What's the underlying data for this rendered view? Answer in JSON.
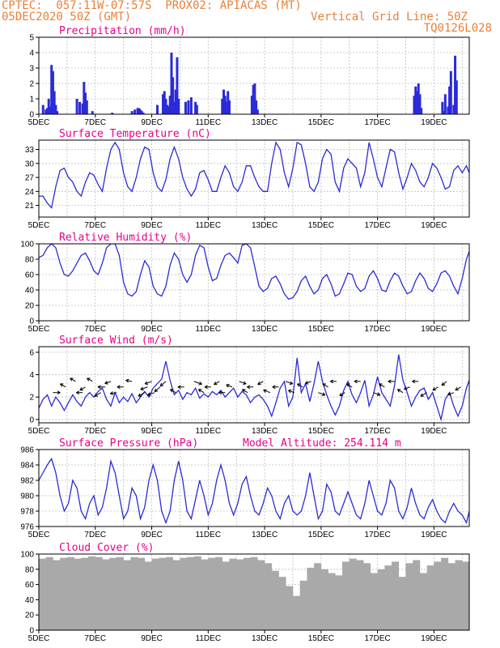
{
  "header": {
    "line1_left": "CPTEC:  057:11W-07:57S  PROX02: APIACAS (MT)",
    "line2_left": "05DEC2020 50Z (GMT)",
    "line2_right": "Vertical Grid Line: 50Z",
    "line3_right": "TQ0126L028"
  },
  "colors": {
    "title": "#e8008a",
    "header": "#e8803a",
    "series": "#2b2bd8",
    "cloud": "#a9a9a9",
    "grid": "#bdbdbd"
  },
  "x_axis": {
    "tick_labels": [
      "5DEC",
      "7DEC",
      "9DEC",
      "11DEC",
      "13DEC",
      "15DEC",
      "17DEC",
      "19DEC"
    ],
    "tick_days": [
      0,
      2,
      4,
      6,
      8,
      10,
      12,
      14
    ],
    "range_days": [
      0,
      15.25
    ],
    "minor_every_days": 1
  },
  "chart_data": [
    {
      "type": "bar",
      "title": "Precipitation (mm/h)",
      "ylim": [
        0,
        5
      ],
      "yticks": [
        0,
        1,
        2,
        3,
        4,
        5
      ],
      "x_days": [
        0.15,
        0.25,
        0.3,
        0.35,
        0.4,
        0.45,
        0.5,
        0.55,
        0.6,
        0.65,
        1.35,
        1.45,
        1.55,
        1.6,
        1.65,
        1.7,
        1.9,
        2.6,
        3.3,
        3.4,
        3.5,
        3.55,
        3.6,
        3.65,
        3.7,
        4.2,
        4.4,
        4.45,
        4.5,
        4.55,
        4.6,
        4.65,
        4.7,
        4.75,
        4.8,
        4.85,
        4.9,
        4.95,
        5.2,
        5.3,
        5.4,
        5.55,
        5.6,
        6.5,
        6.55,
        6.6,
        6.65,
        6.7,
        6.75,
        7.55,
        7.6,
        7.65,
        7.7,
        7.75,
        13.3,
        13.35,
        13.4,
        13.45,
        13.5,
        13.55,
        14.3,
        14.35,
        14.4,
        14.5,
        14.55,
        14.6,
        14.7,
        14.75,
        14.8
      ],
      "values": [
        0.6,
        0.3,
        0.4,
        1.0,
        0.5,
        3.2,
        2.8,
        1.5,
        0.6,
        0.2,
        1.0,
        0.8,
        0.7,
        2.1,
        1.4,
        0.9,
        0.2,
        0.1,
        0.2,
        0.3,
        0.4,
        0.4,
        0.3,
        0.2,
        0.1,
        0.6,
        1.3,
        1.5,
        1.0,
        0.6,
        0.5,
        1.2,
        4.0,
        2.4,
        0.8,
        1.6,
        3.7,
        1.0,
        0.8,
        0.9,
        1.1,
        0.8,
        0.6,
        1.0,
        1.6,
        1.2,
        0.8,
        1.5,
        0.9,
        1.2,
        1.9,
        2.0,
        0.9,
        0.3,
        1.2,
        1.8,
        1.5,
        2.0,
        1.3,
        0.4,
        0.8,
        0.2,
        1.3,
        0.5,
        1.8,
        2.8,
        0.6,
        3.8,
        2.2
      ]
    },
    {
      "type": "line",
      "title": "Surface Temperature (nC)",
      "ylim": [
        18.5,
        35
      ],
      "yticks": [
        21,
        24,
        27,
        30,
        33
      ],
      "x_days": [
        0,
        0.15,
        0.3,
        0.45,
        0.6,
        0.75,
        0.9,
        1.05,
        1.2,
        1.35,
        1.5,
        1.65,
        1.8,
        1.95,
        2.1,
        2.25,
        2.4,
        2.55,
        2.7,
        2.85,
        3.0,
        3.15,
        3.3,
        3.45,
        3.6,
        3.75,
        3.9,
        4.05,
        4.2,
        4.35,
        4.5,
        4.65,
        4.8,
        4.95,
        5.1,
        5.25,
        5.4,
        5.55,
        5.7,
        5.85,
        6.0,
        6.15,
        6.3,
        6.45,
        6.6,
        6.75,
        6.9,
        7.05,
        7.2,
        7.35,
        7.5,
        7.65,
        7.8,
        7.95,
        8.1,
        8.25,
        8.4,
        8.55,
        8.7,
        8.85,
        9.0,
        9.15,
        9.3,
        9.45,
        9.6,
        9.75,
        9.9,
        10.05,
        10.2,
        10.35,
        10.5,
        10.65,
        10.8,
        10.95,
        11.1,
        11.25,
        11.4,
        11.55,
        11.7,
        11.85,
        12.0,
        12.15,
        12.3,
        12.45,
        12.6,
        12.75,
        12.9,
        13.05,
        13.2,
        13.35,
        13.5,
        13.65,
        13.8,
        13.95,
        14.1,
        14.25,
        14.4,
        14.55,
        14.7,
        14.85,
        15.0,
        15.15,
        15.25
      ],
      "values": [
        23,
        23,
        21.5,
        20.5,
        25,
        28.5,
        29,
        27,
        26,
        24,
        23,
        26,
        28,
        27.5,
        25.5,
        24,
        29,
        33,
        34.5,
        33,
        28,
        25,
        24,
        27,
        31,
        33.5,
        33,
        28,
        25,
        24,
        26.5,
        31,
        33.5,
        31,
        27,
        24.5,
        23,
        24.5,
        28,
        28.5,
        26.5,
        24,
        24,
        27,
        29.5,
        28,
        25,
        24,
        26,
        29.5,
        29.5,
        27,
        25,
        24,
        24,
        30,
        34.5,
        33,
        28,
        25,
        29,
        34.5,
        34,
        30,
        25,
        24,
        26,
        31,
        33,
        32,
        26,
        24,
        29,
        31,
        30,
        29,
        25,
        28,
        34.5,
        31,
        27,
        25,
        29,
        33,
        32.5,
        28,
        24.5,
        27,
        30,
        28.5,
        26,
        25,
        27,
        30,
        29,
        27,
        24.5,
        25,
        28.5,
        29.5,
        28,
        29.5,
        28
      ]
    },
    {
      "type": "line",
      "title": "Relative Humidity (%)",
      "ylim": [
        0,
        100
      ],
      "yticks": [
        0,
        20,
        40,
        60,
        80,
        100
      ],
      "x_days": [
        0,
        0.15,
        0.3,
        0.45,
        0.6,
        0.75,
        0.9,
        1.05,
        1.2,
        1.35,
        1.5,
        1.65,
        1.8,
        1.95,
        2.1,
        2.25,
        2.4,
        2.55,
        2.7,
        2.85,
        3.0,
        3.15,
        3.3,
        3.45,
        3.6,
        3.75,
        3.9,
        4.05,
        4.2,
        4.35,
        4.5,
        4.65,
        4.8,
        4.95,
        5.1,
        5.25,
        5.4,
        5.55,
        5.7,
        5.85,
        6.0,
        6.15,
        6.3,
        6.45,
        6.6,
        6.75,
        6.9,
        7.05,
        7.2,
        7.35,
        7.5,
        7.65,
        7.8,
        7.95,
        8.1,
        8.25,
        8.4,
        8.55,
        8.7,
        8.85,
        9.0,
        9.15,
        9.3,
        9.45,
        9.6,
        9.75,
        9.9,
        10.05,
        10.2,
        10.35,
        10.5,
        10.65,
        10.8,
        10.95,
        11.1,
        11.25,
        11.4,
        11.55,
        11.7,
        11.85,
        12.0,
        12.15,
        12.3,
        12.45,
        12.6,
        12.75,
        12.9,
        13.05,
        13.2,
        13.35,
        13.5,
        13.65,
        13.8,
        13.95,
        14.1,
        14.25,
        14.4,
        14.55,
        14.7,
        14.85,
        15.0,
        15.15,
        15.25
      ],
      "values": [
        82,
        85,
        95,
        100,
        95,
        75,
        60,
        58,
        65,
        75,
        85,
        88,
        78,
        65,
        60,
        75,
        95,
        100,
        100,
        85,
        50,
        35,
        32,
        38,
        60,
        78,
        70,
        45,
        35,
        32,
        45,
        72,
        88,
        80,
        60,
        50,
        60,
        85,
        98,
        95,
        70,
        52,
        55,
        72,
        85,
        88,
        82,
        75,
        98,
        100,
        95,
        70,
        45,
        38,
        42,
        55,
        58,
        48,
        35,
        28,
        30,
        38,
        52,
        58,
        45,
        35,
        40,
        55,
        60,
        48,
        32,
        35,
        48,
        62,
        60,
        45,
        38,
        42,
        58,
        65,
        55,
        40,
        38,
        52,
        62,
        58,
        45,
        35,
        38,
        52,
        62,
        55,
        42,
        38,
        48,
        62,
        65,
        58,
        45,
        35,
        55,
        80,
        90
      ]
    },
    {
      "type": "line",
      "title": "Surface Wind (m/s)",
      "ylim": [
        -0.3,
        6.5
      ],
      "yticks": [
        0,
        2,
        4,
        6
      ],
      "x_days": [
        0,
        0.15,
        0.3,
        0.45,
        0.6,
        0.75,
        0.9,
        1.05,
        1.2,
        1.35,
        1.5,
        1.65,
        1.8,
        1.95,
        2.1,
        2.25,
        2.4,
        2.55,
        2.7,
        2.85,
        3.0,
        3.15,
        3.3,
        3.45,
        3.6,
        3.75,
        3.9,
        4.05,
        4.2,
        4.35,
        4.5,
        4.65,
        4.8,
        4.95,
        5.1,
        5.25,
        5.4,
        5.55,
        5.7,
        5.85,
        6.0,
        6.15,
        6.3,
        6.45,
        6.6,
        6.75,
        6.9,
        7.05,
        7.2,
        7.35,
        7.5,
        7.65,
        7.8,
        7.95,
        8.1,
        8.25,
        8.4,
        8.55,
        8.7,
        8.85,
        9.0,
        9.15,
        9.3,
        9.45,
        9.6,
        9.75,
        9.9,
        10.05,
        10.2,
        10.35,
        10.5,
        10.65,
        10.8,
        10.95,
        11.1,
        11.25,
        11.4,
        11.55,
        11.7,
        11.85,
        12.0,
        12.15,
        12.3,
        12.45,
        12.6,
        12.75,
        12.9,
        13.05,
        13.2,
        13.35,
        13.5,
        13.65,
        13.8,
        13.95,
        14.1,
        14.25,
        14.4,
        14.55,
        14.7,
        14.85,
        15.0,
        15.15,
        15.25
      ],
      "values": [
        1.0,
        1.8,
        2.2,
        1.2,
        2.0,
        1.5,
        0.8,
        1.5,
        2.2,
        1.6,
        1.2,
        2.0,
        2.4,
        2.0,
        2.5,
        2.8,
        1.8,
        1.2,
        2.4,
        1.5,
        2.0,
        1.6,
        2.3,
        1.5,
        2.0,
        2.5,
        2.0,
        2.8,
        3.2,
        3.6,
        5.2,
        3.5,
        2.2,
        2.6,
        1.8,
        2.4,
        2.2,
        2.8,
        1.9,
        2.3,
        2.0,
        2.5,
        2.2,
        2.6,
        2.0,
        2.4,
        2.8,
        2.0,
        2.5,
        2.2,
        1.5,
        2.0,
        2.2,
        1.8,
        1.2,
        0.3,
        1.5,
        2.8,
        3.4,
        1.2,
        2.0,
        5.5,
        2.4,
        3.2,
        1.6,
        3.2,
        5.2,
        3.4,
        2.2,
        1.2,
        0.4,
        1.2,
        2.6,
        3.4,
        2.2,
        1.5,
        2.4,
        3.5,
        1.2,
        2.2,
        3.8,
        2.4,
        1.8,
        1.2,
        3.0,
        5.8,
        3.5,
        2.4,
        1.2,
        2.0,
        2.6,
        2.8,
        1.8,
        2.4,
        1.2,
        0.0,
        1.8,
        2.4,
        1.2,
        0.3,
        1.2,
        2.8,
        3.5
      ],
      "barbs": {
        "x_days": [
          0.5,
          0.95,
          1.3,
          1.55,
          1.65,
          1.9,
          2.2,
          2.35,
          2.55,
          2.75,
          3.0,
          3.3,
          3.75,
          3.85,
          4.0,
          4.1,
          4.3,
          4.5,
          4.85,
          5.15,
          5.5,
          5.85,
          6.1,
          6.4,
          6.6,
          6.85,
          7.1,
          7.4,
          7.6,
          7.95,
          8.2,
          8.5,
          8.75,
          9.05,
          9.35,
          9.65,
          9.9,
          10.25,
          10.55,
          10.85,
          11.1,
          11.4,
          11.85,
          12.25,
          12.6,
          12.9,
          13.15,
          13.45,
          13.75,
          14.15,
          14.45,
          14.7,
          14.95
        ],
        "directions_deg": [
          90,
          300,
          300,
          270,
          240,
          300,
          240,
          270,
          250,
          260,
          270,
          280,
          240,
          250,
          250,
          250,
          230,
          230,
          300,
          270,
          110,
          300,
          270,
          240,
          270,
          290,
          110,
          300,
          270,
          240,
          290,
          270,
          110,
          290,
          300,
          250,
          110,
          300,
          270,
          240,
          300,
          270,
          110,
          300,
          270,
          300,
          250,
          270,
          240,
          240,
          230,
          250,
          240
        ],
        "speeds_ms": [
          2.0,
          1.5,
          1.5,
          1.5,
          1.5,
          1.5,
          2.0,
          2.0,
          1.5,
          1.5,
          1.5,
          1.5,
          2.0,
          2.0,
          2.0,
          2.0,
          2.0,
          2.0,
          1.5,
          1.5,
          2.5,
          1.5,
          1.5,
          1.5,
          1.5,
          1.5,
          2.0,
          1.5,
          1.5,
          1.5,
          2.0,
          1.5,
          2.0,
          1.5,
          1.5,
          1.5,
          2.0,
          1.5,
          1.5,
          1.5,
          1.5,
          1.5,
          2.0,
          1.5,
          1.5,
          1.5,
          1.5,
          1.5,
          2.0,
          1.5,
          1.5,
          1.5,
          1.5
        ]
      }
    },
    {
      "type": "line",
      "title": "Surface Pressure (hPa)",
      "annotation": "Model Altitude: 254.114 m",
      "ylim": [
        976,
        986
      ],
      "yticks": [
        976,
        978,
        980,
        982,
        984,
        986
      ],
      "x_days": [
        0,
        0.15,
        0.3,
        0.45,
        0.6,
        0.75,
        0.9,
        1.05,
        1.2,
        1.35,
        1.5,
        1.65,
        1.8,
        1.95,
        2.1,
        2.25,
        2.4,
        2.55,
        2.7,
        2.85,
        3.0,
        3.15,
        3.3,
        3.45,
        3.6,
        3.75,
        3.9,
        4.05,
        4.2,
        4.35,
        4.5,
        4.65,
        4.8,
        4.95,
        5.1,
        5.25,
        5.4,
        5.55,
        5.7,
        5.85,
        6.0,
        6.15,
        6.3,
        6.45,
        6.6,
        6.75,
        6.9,
        7.05,
        7.2,
        7.35,
        7.5,
        7.65,
        7.8,
        7.95,
        8.1,
        8.25,
        8.4,
        8.55,
        8.7,
        8.85,
        9.0,
        9.15,
        9.3,
        9.45,
        9.6,
        9.75,
        9.9,
        10.05,
        10.2,
        10.35,
        10.5,
        10.65,
        10.8,
        10.95,
        11.1,
        11.25,
        11.4,
        11.55,
        11.7,
        11.85,
        12.0,
        12.15,
        12.3,
        12.45,
        12.6,
        12.75,
        12.9,
        13.05,
        13.2,
        13.35,
        13.5,
        13.65,
        13.8,
        13.95,
        14.1,
        14.25,
        14.4,
        14.55,
        14.7,
        14.85,
        15.0,
        15.15,
        15.25
      ],
      "values": [
        982,
        983,
        984,
        984.8,
        983,
        980,
        978,
        979,
        982,
        981,
        978,
        977,
        979,
        980,
        977.5,
        978.5,
        981,
        984.5,
        983,
        980,
        977,
        978,
        981,
        980,
        977,
        978.5,
        982,
        984,
        982,
        978,
        976.5,
        978,
        982,
        984.5,
        982,
        978,
        977,
        979.5,
        982,
        980,
        977.5,
        979,
        982,
        984,
        982,
        979,
        977.5,
        979,
        981.5,
        982.5,
        980,
        978,
        977.5,
        979,
        981,
        980,
        978,
        977,
        979,
        980,
        978,
        977.5,
        978,
        980,
        983,
        980,
        977,
        978,
        981.5,
        980.5,
        978,
        977.5,
        979,
        980.5,
        979,
        977.5,
        977,
        979,
        982,
        980,
        978,
        977.5,
        979,
        982,
        981,
        978,
        977,
        978.5,
        981,
        979,
        977.5,
        977,
        978.5,
        979.5,
        978,
        977,
        976.5,
        978,
        979,
        978,
        977.5,
        976.5,
        978
      ]
    },
    {
      "type": "area",
      "title": "Cloud Cover (%)",
      "ylim": [
        0,
        100
      ],
      "yticks": [
        0,
        20,
        40,
        60,
        80,
        100
      ],
      "x_days": [
        0,
        0.25,
        0.5,
        0.75,
        1.0,
        1.25,
        1.5,
        1.75,
        2.0,
        2.25,
        2.5,
        2.75,
        3.0,
        3.25,
        3.5,
        3.75,
        4.0,
        4.25,
        4.5,
        4.75,
        5.0,
        5.25,
        5.5,
        5.75,
        6.0,
        6.25,
        6.5,
        6.75,
        7.0,
        7.25,
        7.5,
        7.75,
        8.0,
        8.25,
        8.5,
        8.75,
        9.0,
        9.25,
        9.5,
        9.75,
        10.0,
        10.25,
        10.5,
        10.75,
        11.0,
        11.25,
        11.5,
        11.75,
        12.0,
        12.25,
        12.5,
        12.75,
        13.0,
        13.25,
        13.5,
        13.75,
        14.0,
        14.25,
        14.5,
        14.75,
        15.0,
        15.25
      ],
      "values": [
        94,
        96,
        92,
        95,
        96,
        94,
        95,
        97,
        96,
        93,
        95,
        96,
        92,
        96,
        95,
        90,
        94,
        95,
        96,
        92,
        95,
        96,
        97,
        93,
        95,
        96,
        90,
        94,
        93,
        95,
        96,
        92,
        88,
        78,
        70,
        58,
        45,
        65,
        82,
        88,
        80,
        75,
        72,
        90,
        94,
        92,
        88,
        75,
        80,
        85,
        90,
        70,
        88,
        92,
        75,
        85,
        90,
        95,
        88,
        92,
        90,
        95
      ]
    }
  ]
}
